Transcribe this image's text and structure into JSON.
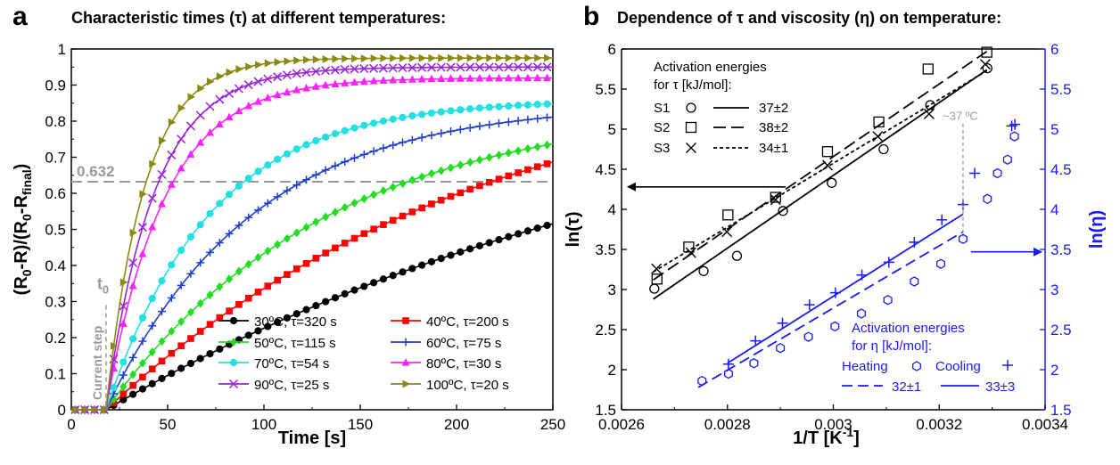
{
  "colors": {
    "black": "#000000",
    "blue": "#1a1aff",
    "gray": "#999999",
    "s30": "#000000",
    "s40": "#ff0000",
    "s50": "#22dd22",
    "s60": "#1f3fcf",
    "s70": "#22e0e0",
    "s80": "#ff22ff",
    "s90": "#9922dd",
    "s100": "#8a8a10"
  },
  "chart_data": [
    {
      "panel": "a",
      "type": "line",
      "title": "Characteristic times (τ) at different temperatures:",
      "xlabel": "Time [s]",
      "ylabel": "(R0-R)/(R0-Rfinal)",
      "ylabel_main": "(R",
      "ylabel_parts": [
        "0",
        "-R)/(R",
        "0",
        "-R",
        "final",
        ")"
      ],
      "xlim": [
        0,
        250
      ],
      "ylim": [
        0,
        1
      ],
      "xticks": [
        "0",
        "50",
        "100",
        "150",
        "200",
        "250"
      ],
      "yticks": [
        "0",
        "0.1",
        "0.2",
        "0.3",
        "0.4",
        "0.5",
        "0.6",
        "0.7",
        "0.8",
        "0.9",
        "1"
      ],
      "hline": {
        "y": 0.632,
        "label": "0.632"
      },
      "t0": {
        "x": 18,
        "label": "t",
        "sub": "0",
        "step_label": "Current step"
      },
      "legend": "bottom-right",
      "t_start": 18,
      "series": [
        {
          "name": "30ºC, τ=320 s",
          "tau": 320,
          "amp": 1.0,
          "marker": "circle",
          "color_key": "s30"
        },
        {
          "name": "40ºC, τ=200 s",
          "tau": 200,
          "amp": 1.0,
          "marker": "square",
          "color_key": "s40"
        },
        {
          "name": "50ºC, τ=115 s",
          "tau": 115,
          "amp": 0.85,
          "marker": "diamond",
          "color_key": "s50"
        },
        {
          "name": "60ºC, τ=75 s",
          "tau": 75,
          "amp": 0.85,
          "marker": "plus",
          "color_key": "s60"
        },
        {
          "name": "70ºC, τ=54 s",
          "tau": 54,
          "amp": 0.86,
          "marker": "circle",
          "color_key": "s70"
        },
        {
          "name": "80ºC, τ=30 s",
          "tau": 30,
          "amp": 0.92,
          "marker": "triangle",
          "color_key": "s80"
        },
        {
          "name": "90ºC, τ=25 s",
          "tau": 25,
          "amp": 0.95,
          "marker": "x",
          "color_key": "s90"
        },
        {
          "name": "100ºC, τ=20 s",
          "tau": 20,
          "amp": 0.975,
          "marker": "tri-right",
          "color_key": "s100"
        }
      ]
    },
    {
      "panel": "b",
      "type": "scatter",
      "title": "Dependence of τ and viscosity (η) on temperature:",
      "xlabel": "1/T [K",
      "xlabel_sup": "-1",
      "xlabel_end": "]",
      "ylabel_left": "ln(τ)",
      "ylabel_right": "ln(η)",
      "xlim": [
        0.0026,
        0.0034
      ],
      "ylim_left": [
        1.5,
        6
      ],
      "ylim_right": [
        1.5,
        6
      ],
      "xticks": [
        "0.0026",
        "0.0028",
        "0.003",
        "0.0032",
        "0.0034"
      ],
      "yticks": [
        "1.5",
        "2",
        "2.5",
        "3",
        "3.5",
        "4",
        "4.5",
        "5",
        "5.5",
        "6"
      ],
      "tau_legend": {
        "title1": "Activation energies",
        "title2": "for τ [kJ/mol]:",
        "rows": [
          {
            "name": "S1",
            "value": "37±2"
          },
          {
            "name": "S2",
            "value": "38±2"
          },
          {
            "name": "S3",
            "value": "34±1"
          }
        ]
      },
      "eta_legend": {
        "title1": "Activation energies",
        "title2": "for η [kJ/mol]:",
        "heating": "Heating",
        "cooling": "Cooling",
        "heating_value": "32±1",
        "cooling_value": "33±3"
      },
      "annotation": "~37 ºC",
      "series": [
        {
          "name": "S1",
          "marker": "circle",
          "fit": [
            [
              0.00266,
              2.88
            ],
            [
              0.00329,
              5.74
            ]
          ],
          "x": [
            0.002662,
            0.002755,
            0.002818,
            0.002905,
            0.002997,
            0.003095,
            0.003183,
            0.003291
          ],
          "y": [
            3.01,
            3.23,
            3.42,
            3.98,
            4.33,
            4.75,
            5.3,
            5.76
          ]
        },
        {
          "name": "S2",
          "marker": "square",
          "fit": [
            [
              0.00266,
              3.12
            ],
            [
              0.00329,
              5.97
            ]
          ],
          "x": [
            0.002667,
            0.002727,
            0.002801,
            0.002891,
            0.002989,
            0.003086,
            0.003179,
            0.00329
          ],
          "y": [
            3.13,
            3.53,
            3.93,
            4.15,
            4.72,
            5.09,
            5.75,
            5.96
          ]
        },
        {
          "name": "S3",
          "marker": "x",
          "fit": [
            [
              0.00266,
              3.22
            ],
            [
              0.00329,
              5.73
            ]
          ],
          "x": [
            0.002666,
            0.002731,
            0.002799,
            0.002891,
            0.002989,
            0.003084,
            0.003181,
            0.003287
          ],
          "y": [
            3.26,
            3.46,
            3.72,
            4.12,
            4.55,
            4.91,
            5.19,
            5.81
          ]
        },
        {
          "name": "Heating",
          "marker": "hexagon",
          "fit": [
            [
              0.002745,
              1.78
            ],
            [
              0.003245,
              3.72
            ]
          ],
          "x": [
            0.002752,
            0.002802,
            0.00285,
            0.0029,
            0.002953,
            0.003003,
            0.003053,
            0.003103,
            0.003153,
            0.003203,
            0.003245,
            0.003291,
            0.00331,
            0.003329,
            0.003342
          ],
          "y": [
            1.86,
            1.95,
            2.08,
            2.27,
            2.41,
            2.54,
            2.7,
            2.87,
            3.1,
            3.32,
            3.63,
            4.13,
            4.45,
            4.62,
            4.91
          ]
        },
        {
          "name": "Cooling",
          "marker": "plus",
          "fit": [
            [
              0.0028,
              2.08
            ],
            [
              0.003245,
              3.94
            ]
          ],
          "x": [
            0.002802,
            0.002853,
            0.002904,
            0.002955,
            0.003004,
            0.003054,
            0.003105,
            0.003153,
            0.003205,
            0.003245,
            0.003267,
            0.003337,
            0.003343
          ],
          "y": [
            2.07,
            2.36,
            2.58,
            2.81,
            2.96,
            3.18,
            3.34,
            3.59,
            3.87,
            4.06,
            4.45,
            5.04,
            5.06
          ]
        }
      ]
    }
  ]
}
